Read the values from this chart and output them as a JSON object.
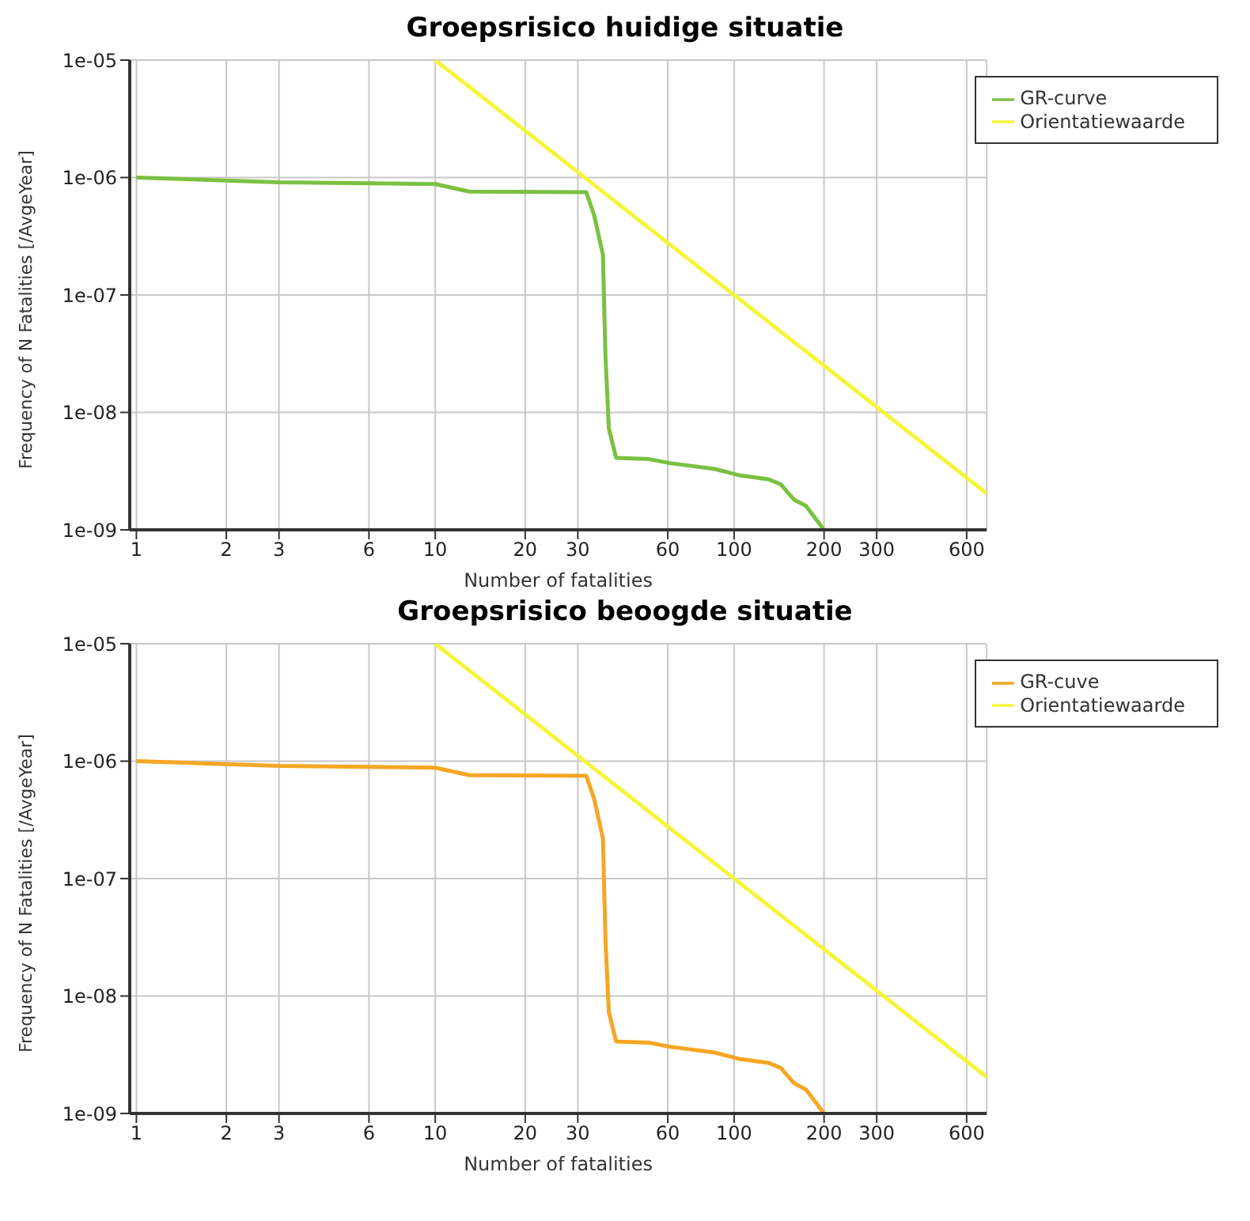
{
  "chart_data": [
    {
      "type": "line",
      "title": "Groepsrisico huidige situatie",
      "xlabel": "Number of fatalities",
      "ylabel": "Frequency of N Fatalities [/AvgeYear]",
      "log": "xy",
      "grid": true,
      "legend": "top right",
      "marker": "none",
      "line_style": "solid",
      "xlim": [
        0.95,
        700
      ],
      "xticks": [
        1,
        2,
        3,
        6,
        10,
        20,
        30,
        60,
        100,
        200,
        300,
        600
      ],
      "ylim": [
        1e-09,
        1e-05
      ],
      "yticks": [
        {
          "value": 1e-09,
          "label": "1e-09"
        },
        {
          "value": 1e-08,
          "label": "1e-08"
        },
        {
          "value": 1e-07,
          "label": "1e-07"
        },
        {
          "value": 1e-06,
          "label": "1e-06"
        },
        {
          "value": 1e-05,
          "label": "1e-05"
        }
      ],
      "series": [
        {
          "name": "GR-curve",
          "color": "#7ac142",
          "x": [
            1,
            3,
            10,
            13,
            32,
            34,
            36.4,
            37.1,
            38.1,
            40.3,
            52,
            61,
            86,
            105,
            130,
            143,
            159,
            174,
            200
          ],
          "values": [
            1e-06,
            9.1e-07,
            8.8e-07,
            7.6e-07,
            7.5e-07,
            4.8e-07,
            2.2e-07,
            3.1e-08,
            7.3e-09,
            4.1e-09,
            4e-09,
            3.7e-09,
            3.3e-09,
            2.9e-09,
            2.7e-09,
            2.45e-09,
            1.8e-09,
            1.6e-09,
            1e-09
          ]
        },
        {
          "name": "Orientatiewaarde",
          "color": "#f5f53a",
          "x": [
            10,
            700
          ],
          "values": [
            1e-05,
            2.04e-09
          ]
        }
      ]
    },
    {
      "type": "line",
      "title": "Groepsrisico beoogde situatie",
      "xlabel": "Number of fatalities",
      "ylabel": "Frequency of N Fatalities [/AvgeYear]",
      "log": "xy",
      "grid": true,
      "legend": "top right",
      "marker": "none",
      "line_style": "solid",
      "xlim": [
        0.95,
        700
      ],
      "xticks": [
        1,
        2,
        3,
        6,
        10,
        20,
        30,
        60,
        100,
        200,
        300,
        600
      ],
      "ylim": [
        1e-09,
        1e-05
      ],
      "yticks": [
        {
          "value": 1e-09,
          "label": "1e-09"
        },
        {
          "value": 1e-08,
          "label": "1e-08"
        },
        {
          "value": 1e-07,
          "label": "1e-07"
        },
        {
          "value": 1e-06,
          "label": "1e-06"
        },
        {
          "value": 1e-05,
          "label": "1e-05"
        }
      ],
      "series": [
        {
          "name": "GR-cuve",
          "color": "#f5a623",
          "x": [
            1,
            3,
            10,
            13,
            32,
            34,
            36.4,
            37.1,
            38.1,
            40.3,
            52,
            61,
            86,
            105,
            130,
            143,
            159,
            174,
            200
          ],
          "values": [
            1e-06,
            9.1e-07,
            8.8e-07,
            7.6e-07,
            7.5e-07,
            4.8e-07,
            2.2e-07,
            3.1e-08,
            7.3e-09,
            4.1e-09,
            4e-09,
            3.7e-09,
            3.3e-09,
            2.9e-09,
            2.7e-09,
            2.45e-09,
            1.8e-09,
            1.6e-09,
            1e-09
          ]
        },
        {
          "name": "Orientatiewaarde",
          "color": "#f5f53a",
          "x": [
            10,
            700
          ],
          "values": [
            1e-05,
            2.04e-09
          ]
        }
      ]
    }
  ]
}
